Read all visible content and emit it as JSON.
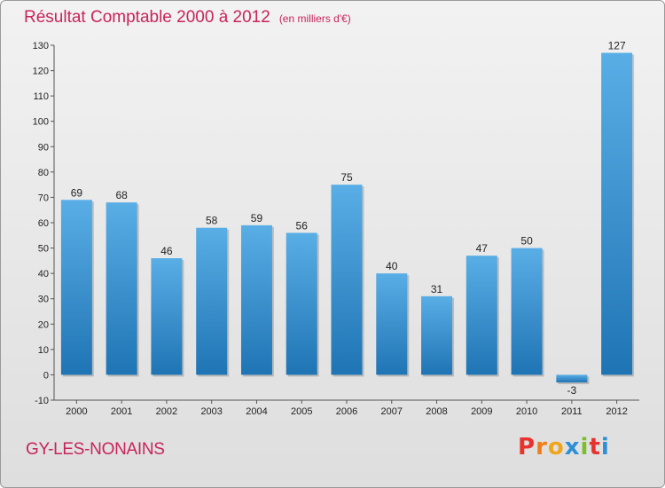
{
  "header": {
    "title": "Résultat Comptable 2000 à 2012",
    "subtitle": "(en milliers d'€)"
  },
  "footer": {
    "place_name": "GY-LES-NONAINS",
    "logo_letters": [
      "P",
      "r",
      "o",
      "x",
      "i",
      "t",
      "i"
    ],
    "logo_colors": [
      "#e8322d",
      "#f07d1a",
      "#f0a51a",
      "#2d8fd5",
      "#7bbf2a",
      "#e8322d",
      "#2d8fd5"
    ]
  },
  "colors": {
    "title": "#c8245a",
    "bar_light": "#5aaee6",
    "bar_dark": "#1f74b4"
  },
  "chart_data": {
    "type": "bar",
    "title": "Résultat Comptable 2000 à 2012",
    "subtitle": "(en milliers d'€)",
    "categories": [
      "2000",
      "2001",
      "2002",
      "2003",
      "2004",
      "2005",
      "2006",
      "2007",
      "2008",
      "2009",
      "2010",
      "2011",
      "2012"
    ],
    "values": [
      69,
      68,
      46,
      58,
      59,
      56,
      75,
      40,
      31,
      47,
      50,
      -3,
      127
    ],
    "data_labels": [
      "69",
      "68",
      "46",
      "58",
      "59",
      "56",
      "75",
      "40",
      "31",
      "47",
      "50",
      "-3",
      "127"
    ],
    "ylim": [
      -10,
      130
    ],
    "yticks": [
      -10,
      0,
      10,
      20,
      30,
      40,
      50,
      60,
      70,
      80,
      90,
      100,
      110,
      120,
      130
    ],
    "ytick_labels": [
      "-10",
      "0",
      "10",
      "20",
      "30",
      "40",
      "50",
      "60",
      "70",
      "80",
      "90",
      "100",
      "110",
      "120",
      "130"
    ],
    "grid": false
  }
}
